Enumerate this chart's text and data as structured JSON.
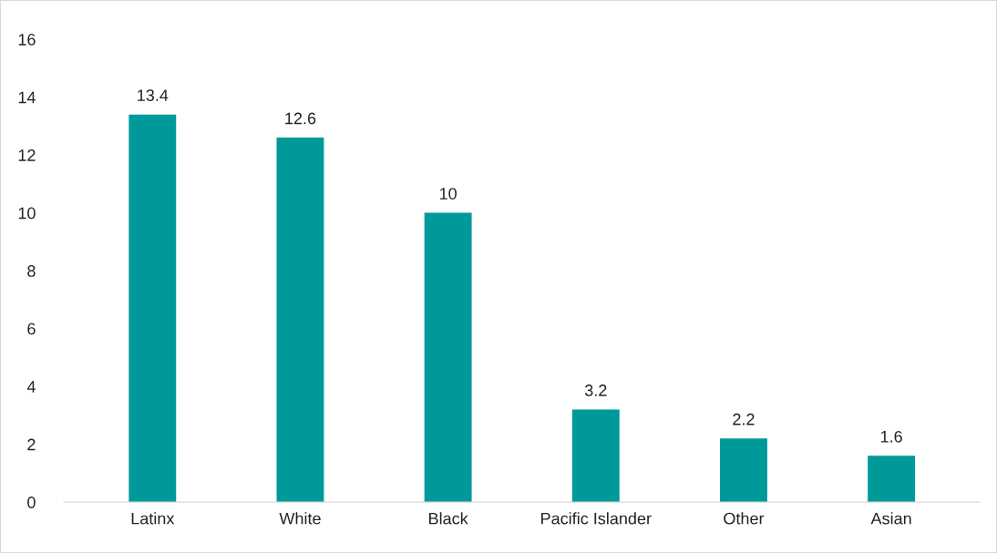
{
  "chart_data": {
    "type": "bar",
    "categories": [
      "Latinx",
      "White",
      "Black",
      "Pacific Islander",
      "Other",
      "Asian"
    ],
    "values": [
      13.4,
      12.6,
      10,
      3.2,
      2.2,
      1.6
    ],
    "color": "#009999",
    "ylim": [
      0,
      16
    ],
    "yticks": [
      0,
      2,
      4,
      6,
      8,
      10,
      12,
      14,
      16
    ],
    "grid": false,
    "data_labels": true
  }
}
